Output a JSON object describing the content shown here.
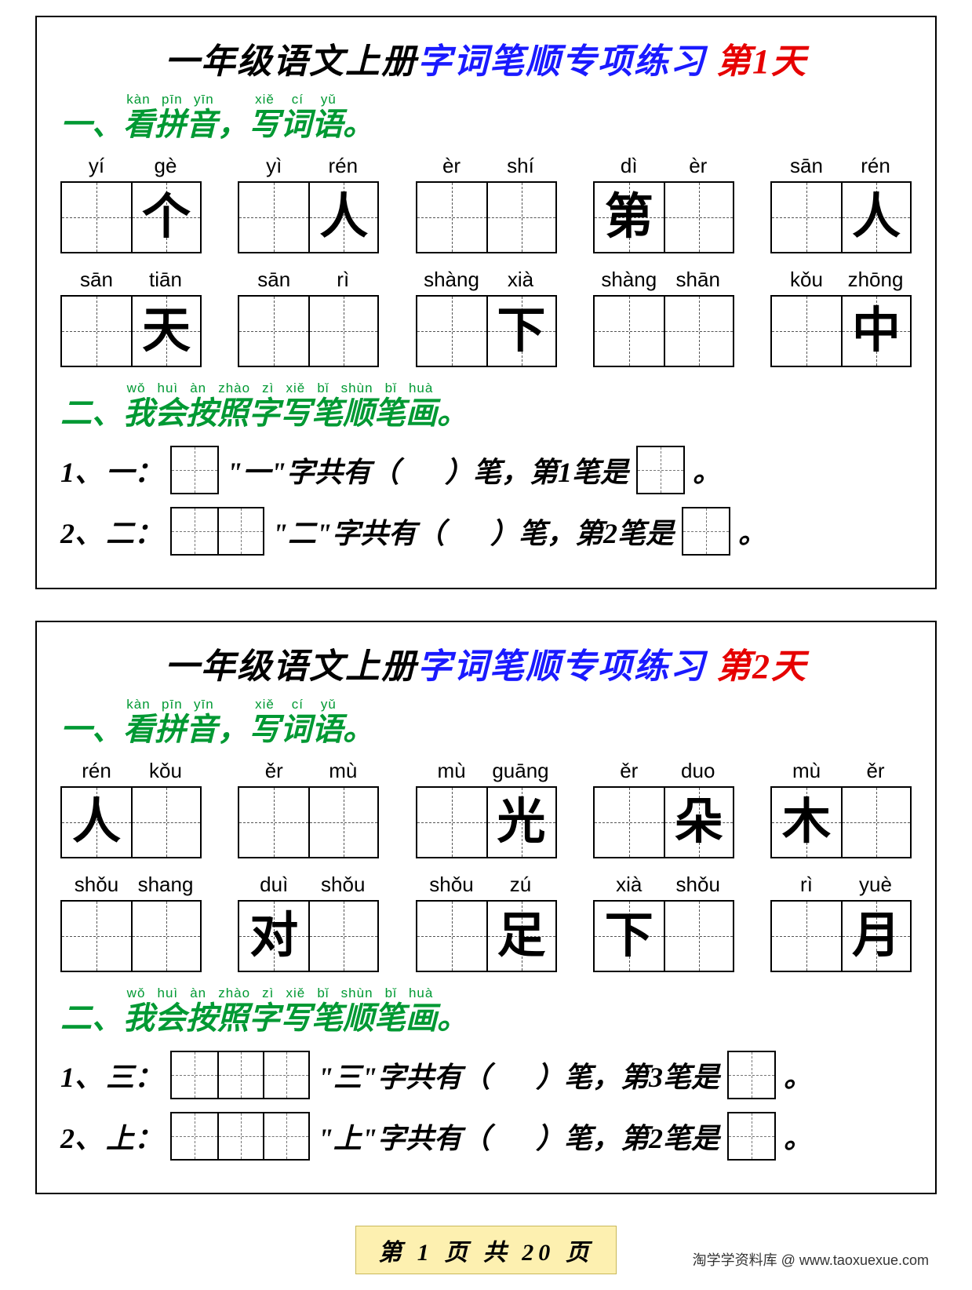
{
  "colors": {
    "black": "#000000",
    "blue": "#1a1aff",
    "red": "#e60000",
    "green": "#009933",
    "badge_bg": "#fdf0b0",
    "badge_border": "#c9b85a"
  },
  "typography": {
    "title_size_pt": 44,
    "section_size_pt": 40,
    "pinyin_size_pt": 26,
    "char_size_pt": 62,
    "stroke_line_size_pt": 36,
    "badge_size_pt": 30,
    "credit_size_pt": 18
  },
  "panels": [
    {
      "title_black": "一年级语文上册",
      "title_blue": "字词笔顺专项练习",
      "title_red": "第1天",
      "section1": {
        "prefix": "一、",
        "part1": "看拼音",
        "part1_rt": "kàn pīn yīn",
        "comma": "，",
        "part2": "写词语",
        "part2_rt": "xiě cí yǔ",
        "suffix": "。"
      },
      "rows": [
        [
          {
            "p": [
              "yí",
              "gè"
            ],
            "c": [
              "",
              "个"
            ]
          },
          {
            "p": [
              "yì",
              "rén"
            ],
            "c": [
              "",
              "人"
            ]
          },
          {
            "p": [
              "èr",
              "shí"
            ],
            "c": [
              "",
              ""
            ]
          },
          {
            "p": [
              "dì",
              "èr"
            ],
            "c": [
              "第",
              ""
            ]
          },
          {
            "p": [
              "sān",
              "rén"
            ],
            "c": [
              "",
              "人"
            ]
          }
        ],
        [
          {
            "p": [
              "sān",
              "tiān"
            ],
            "c": [
              "",
              "天"
            ]
          },
          {
            "p": [
              "sān",
              "rì"
            ],
            "c": [
              "",
              ""
            ]
          },
          {
            "p": [
              "shàng",
              "xià"
            ],
            "c": [
              "",
              "下"
            ]
          },
          {
            "p": [
              "shàng",
              "shān"
            ],
            "c": [
              "",
              ""
            ]
          },
          {
            "p": [
              "kǒu",
              "zhōng"
            ],
            "c": [
              "",
              "中"
            ]
          }
        ]
      ],
      "section2": {
        "prefix": "二、",
        "text": "我会按照字写笔顺笔画",
        "rt": "wǒ huì àn zhào zì xiě bǐ shùn bǐ huà",
        "suffix": "。"
      },
      "strokes": [
        {
          "num": "1、",
          "char": "一",
          "boxes_before": 1,
          "q_a": "\"一\"字共有（",
          "q_b": "）笔，第1笔是",
          "boxes_after": 1,
          "end": "。"
        },
        {
          "num": "2、",
          "char": "二",
          "boxes_before": 2,
          "q_a": "\"二\"字共有（",
          "q_b": "）笔，第2笔是",
          "boxes_after": 1,
          "end": "。"
        }
      ]
    },
    {
      "title_black": "一年级语文上册",
      "title_blue": "字词笔顺专项练习",
      "title_red": "第2天",
      "section1": {
        "prefix": "一、",
        "part1": "看拼音",
        "part1_rt": "kàn pīn yīn",
        "comma": "，",
        "part2": "写词语",
        "part2_rt": "xiě cí yǔ",
        "suffix": "。"
      },
      "rows": [
        [
          {
            "p": [
              "rén",
              "kǒu"
            ],
            "c": [
              "人",
              ""
            ]
          },
          {
            "p": [
              "ěr",
              "mù"
            ],
            "c": [
              "",
              ""
            ]
          },
          {
            "p": [
              "mù",
              "guāng"
            ],
            "c": [
              "",
              "光"
            ]
          },
          {
            "p": [
              "ěr",
              "duo"
            ],
            "c": [
              "",
              "朵"
            ]
          },
          {
            "p": [
              "mù",
              "ěr"
            ],
            "c": [
              "木",
              ""
            ]
          }
        ],
        [
          {
            "p": [
              "shǒu",
              "shang"
            ],
            "c": [
              "",
              ""
            ]
          },
          {
            "p": [
              "duì",
              "shǒu"
            ],
            "c": [
              "对",
              ""
            ]
          },
          {
            "p": [
              "shǒu",
              "zú"
            ],
            "c": [
              "",
              "足"
            ]
          },
          {
            "p": [
              "xià",
              "shǒu"
            ],
            "c": [
              "下",
              ""
            ]
          },
          {
            "p": [
              "rì",
              "yuè"
            ],
            "c": [
              "",
              "月"
            ]
          }
        ]
      ],
      "section2": {
        "prefix": "二、",
        "text": "我会按照字写笔顺笔画",
        "rt": "wǒ huì àn zhào zì xiě bǐ shùn bǐ huà",
        "suffix": "。"
      },
      "strokes": [
        {
          "num": "1、",
          "char": "三",
          "boxes_before": 3,
          "q_a": "\"三\"字共有（",
          "q_b": "）笔，第3笔是",
          "boxes_after": 1,
          "end": "。"
        },
        {
          "num": "2、",
          "char": "上",
          "boxes_before": 3,
          "q_a": "\"上\"字共有（",
          "q_b": "）笔，第2笔是",
          "boxes_after": 1,
          "end": "。"
        }
      ]
    }
  ],
  "footer": {
    "badge": "第 1 页 共 20 页",
    "credit": "淘学学资料库 @ www.taoxuexue.com"
  }
}
